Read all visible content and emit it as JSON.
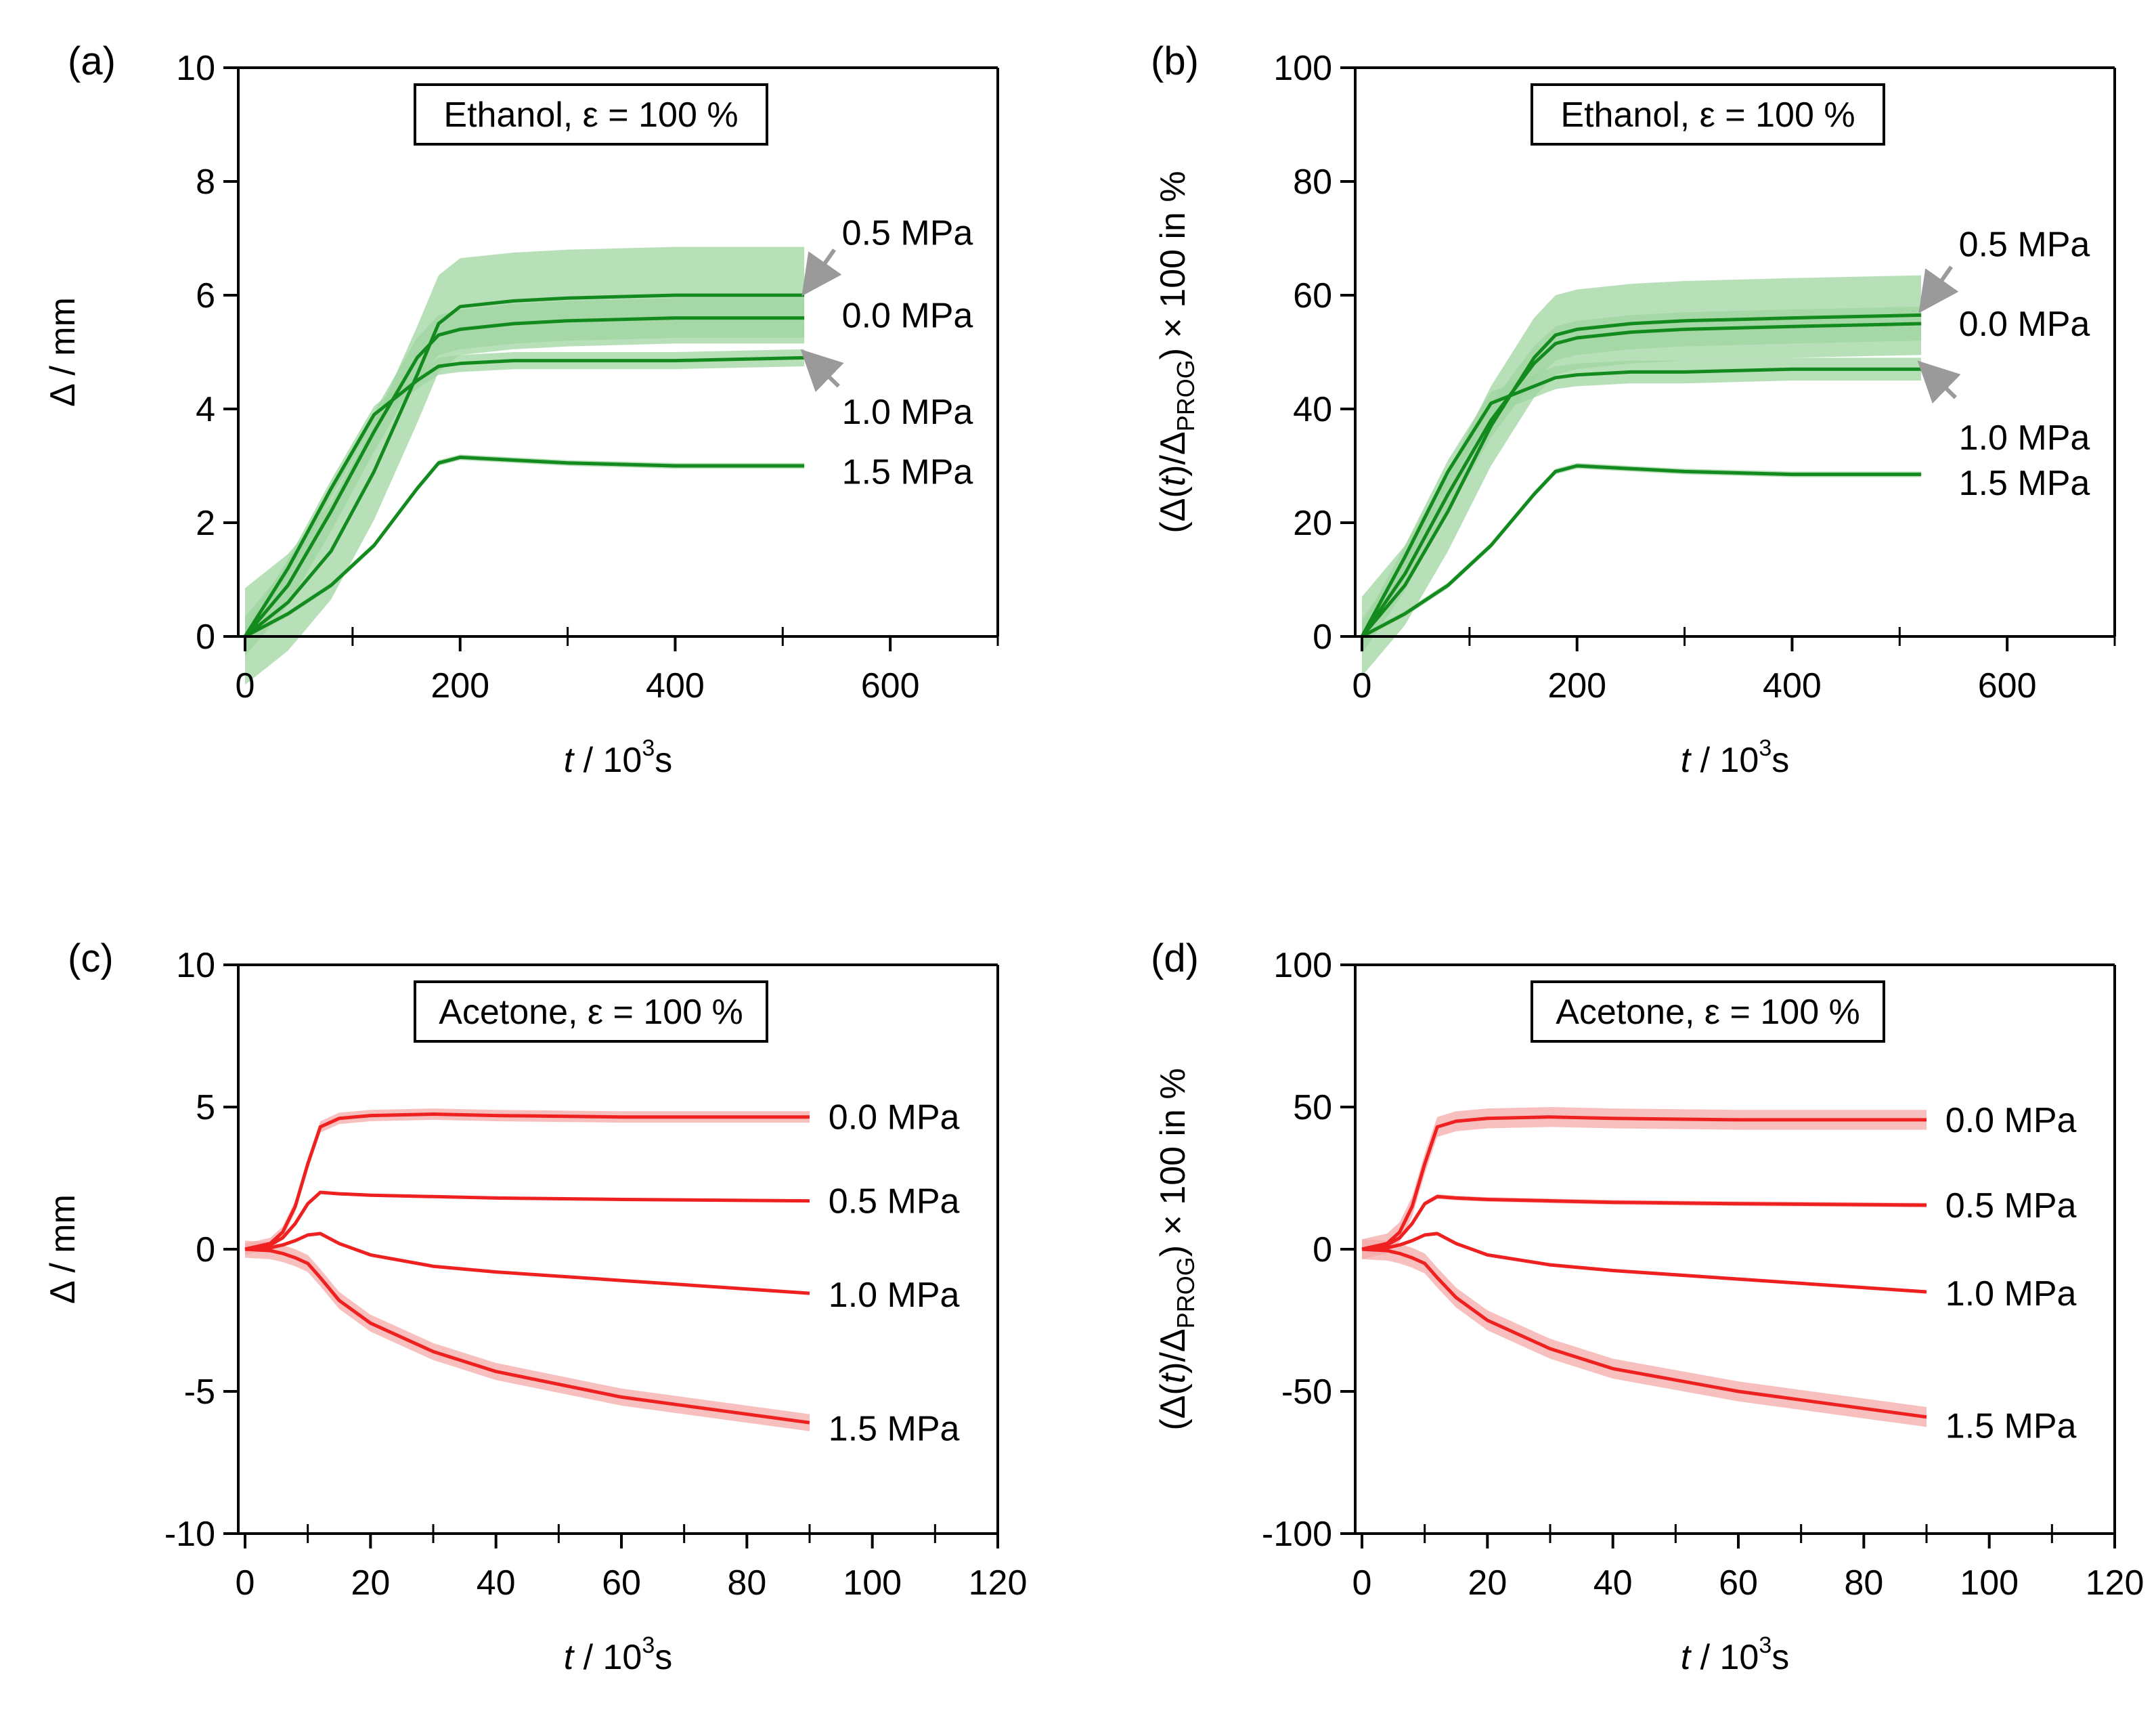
{
  "figure": {
    "series_color_ethanol": "#138a1e",
    "band_color_ethanol": "#9fd6a0",
    "series_color_acetone": "#ee2020",
    "band_color_acetone": "#f6aaaa",
    "arrow_color": "#9a9a9a"
  },
  "chart_data": [
    {
      "panel_label": "(a)",
      "type": "line",
      "annotation": "Ethanol, ε = 100 %",
      "xlabel_italic": "t",
      "xlabel_rest": " / 10",
      "xlabel_sup": "3",
      "xlabel_unit": "s",
      "ylabel": "Δ / mm",
      "xlim": [
        0,
        700
      ],
      "ylim": [
        0,
        10
      ],
      "xticks": [
        0,
        200,
        400,
        600
      ],
      "xtick_labels": [
        "0",
        "200",
        "400",
        "600"
      ],
      "xminor": [
        100,
        300,
        500,
        700
      ],
      "yticks": [
        0,
        2,
        4,
        6,
        8,
        10
      ],
      "ytick_labels": [
        "0",
        "2",
        "4",
        "6",
        "8",
        "10"
      ],
      "color_key": "ethanol",
      "series": [
        {
          "name": "0.5 MPa",
          "x": [
            0,
            40,
            80,
            120,
            160,
            180,
            200,
            250,
            300,
            400,
            520
          ],
          "y": [
            0,
            0.6,
            1.5,
            2.9,
            4.6,
            5.5,
            5.8,
            5.9,
            5.95,
            6.0,
            6.0
          ],
          "band": 0.85
        },
        {
          "name": "0.0 MPa",
          "x": [
            0,
            40,
            80,
            120,
            160,
            180,
            200,
            250,
            300,
            400,
            520
          ],
          "y": [
            0,
            0.9,
            2.2,
            3.6,
            4.9,
            5.3,
            5.4,
            5.5,
            5.55,
            5.6,
            5.6
          ],
          "band": 0.35
        },
        {
          "name": "1.0 MPa",
          "x": [
            0,
            40,
            80,
            120,
            160,
            180,
            200,
            250,
            300,
            400,
            520
          ],
          "y": [
            0,
            1.2,
            2.6,
            3.9,
            4.5,
            4.75,
            4.8,
            4.85,
            4.85,
            4.85,
            4.9
          ],
          "band": 0.15
        },
        {
          "name": "1.5 MPa",
          "x": [
            0,
            40,
            80,
            120,
            160,
            180,
            200,
            250,
            300,
            400,
            520
          ],
          "y": [
            0,
            0.4,
            0.9,
            1.6,
            2.6,
            3.05,
            3.15,
            3.1,
            3.05,
            3.0,
            3.0
          ],
          "band": 0.05
        }
      ],
      "labels": [
        {
          "text": "0.5 MPa",
          "x": 555,
          "y": 7.1
        },
        {
          "text": "0.0 MPa",
          "x": 555,
          "y": 5.65
        },
        {
          "text": "1.0 MPa",
          "x": 555,
          "y": 3.95
        },
        {
          "text": "1.5 MPa",
          "x": 555,
          "y": 2.9
        }
      ],
      "arrows": [
        {
          "from": [
            548,
            6.8
          ],
          "to": [
            522,
            6.1
          ]
        },
        {
          "from": [
            552,
            4.4
          ],
          "to": [
            522,
            4.95
          ]
        }
      ]
    },
    {
      "panel_label": "(b)",
      "type": "line",
      "annotation": "Ethanol, ε = 100 %",
      "xlabel_italic": "t",
      "xlabel_rest": " / 10",
      "xlabel_sup": "3",
      "xlabel_unit": "s",
      "ylabel_parts": [
        "(Δ(",
        "t",
        ")/Δ",
        "PROG",
        ") × 100 in %"
      ],
      "xlim": [
        0,
        700
      ],
      "ylim": [
        0,
        100
      ],
      "xticks": [
        0,
        200,
        400,
        600
      ],
      "xtick_labels": [
        "0",
        "200",
        "400",
        "600"
      ],
      "xminor": [
        100,
        300,
        500,
        700
      ],
      "yticks": [
        0,
        20,
        40,
        60,
        80,
        100
      ],
      "ytick_labels": [
        "0",
        "20",
        "40",
        "60",
        "80",
        "100"
      ],
      "color_key": "ethanol",
      "series": [
        {
          "name": "0.5 MPa",
          "x": [
            0,
            40,
            80,
            120,
            160,
            180,
            200,
            250,
            300,
            400,
            520
          ],
          "y": [
            0,
            9,
            22,
            37,
            49,
            53,
            54,
            55,
            55.5,
            56,
            56.5
          ],
          "band": 7
        },
        {
          "name": "0.0 MPa",
          "x": [
            0,
            40,
            80,
            120,
            160,
            180,
            200,
            250,
            300,
            400,
            520
          ],
          "y": [
            0,
            11,
            25,
            38,
            48,
            51.5,
            52.5,
            53.5,
            54,
            54.5,
            55
          ],
          "band": 3
        },
        {
          "name": "1.0 MPa",
          "x": [
            0,
            40,
            80,
            120,
            160,
            180,
            200,
            250,
            300,
            400,
            520
          ],
          "y": [
            0,
            14,
            29,
            41,
            44,
            45.5,
            46,
            46.5,
            46.5,
            47,
            47
          ],
          "band": 2
        },
        {
          "name": "1.5 MPa",
          "x": [
            0,
            40,
            80,
            120,
            160,
            180,
            200,
            250,
            300,
            400,
            520
          ],
          "y": [
            0,
            4,
            9,
            16,
            25,
            29,
            30,
            29.5,
            29,
            28.5,
            28.5
          ],
          "band": 0.5
        }
      ],
      "labels": [
        {
          "text": "0.5 MPa",
          "x": 555,
          "y": 69
        },
        {
          "text": "0.0 MPa",
          "x": 555,
          "y": 55
        },
        {
          "text": "1.0 MPa",
          "x": 555,
          "y": 35
        },
        {
          "text": "1.5 MPa",
          "x": 555,
          "y": 27
        }
      ],
      "arrows": [
        {
          "from": [
            548,
            65
          ],
          "to": [
            522,
            58
          ]
        },
        {
          "from": [
            552,
            42
          ],
          "to": [
            522,
            47.5
          ]
        }
      ]
    },
    {
      "panel_label": "(c)",
      "type": "line",
      "annotation": "Acetone, ε = 100 %",
      "xlabel_italic": "t",
      "xlabel_rest": " / 10",
      "xlabel_sup": "3",
      "xlabel_unit": "s",
      "ylabel": "Δ / mm",
      "xlim": [
        0,
        120
      ],
      "ylim": [
        -10,
        10
      ],
      "xticks": [
        0,
        20,
        40,
        60,
        80,
        100,
        120
      ],
      "xtick_labels": [
        "0",
        "20",
        "40",
        "60",
        "80",
        "100",
        "120"
      ],
      "xminor": [
        10,
        30,
        50,
        70,
        90,
        110
      ],
      "yticks": [
        -10,
        -5,
        0,
        5,
        10
      ],
      "ytick_labels": [
        "-10",
        "-5",
        "0",
        "5",
        "10"
      ],
      "color_key": "acetone",
      "series": [
        {
          "name": "0.0 MPa",
          "x": [
            0,
            4,
            6,
            8,
            10,
            12,
            15,
            20,
            30,
            40,
            60,
            90
          ],
          "y": [
            0,
            0.2,
            0.6,
            1.5,
            3.0,
            4.3,
            4.6,
            4.7,
            4.75,
            4.7,
            4.65,
            4.65
          ],
          "band": 0.2
        },
        {
          "name": "0.5 MPa",
          "x": [
            0,
            4,
            6,
            8,
            10,
            12,
            15,
            20,
            30,
            40,
            60,
            90
          ],
          "y": [
            0,
            0.15,
            0.4,
            0.9,
            1.6,
            2.0,
            1.95,
            1.9,
            1.85,
            1.8,
            1.75,
            1.7
          ],
          "band": 0.05
        },
        {
          "name": "1.0 MPa",
          "x": [
            0,
            4,
            6,
            8,
            10,
            12,
            15,
            20,
            30,
            40,
            60,
            90
          ],
          "y": [
            0,
            0.05,
            0.15,
            0.3,
            0.5,
            0.55,
            0.2,
            -0.2,
            -0.6,
            -0.8,
            -1.1,
            -1.55
          ],
          "band": 0.05
        },
        {
          "name": "1.5 MPa",
          "x": [
            0,
            4,
            6,
            8,
            10,
            12,
            15,
            20,
            30,
            40,
            60,
            90
          ],
          "y": [
            0,
            -0.05,
            -0.15,
            -0.3,
            -0.5,
            -1.0,
            -1.8,
            -2.6,
            -3.6,
            -4.3,
            -5.2,
            -6.1
          ],
          "band": 0.3
        }
      ],
      "labels": [
        {
          "text": "0.0 MPa",
          "x": 93,
          "y": 4.65
        },
        {
          "text": "0.5 MPa",
          "x": 93,
          "y": 1.7
        },
        {
          "text": "1.0 MPa",
          "x": 93,
          "y": -1.6
        },
        {
          "text": "1.5 MPa",
          "x": 93,
          "y": -6.3
        }
      ],
      "arrows": []
    },
    {
      "panel_label": "(d)",
      "type": "line",
      "annotation": "Acetone, ε = 100 %",
      "xlabel_italic": "t",
      "xlabel_rest": " / 10",
      "xlabel_sup": "3",
      "xlabel_unit": "s",
      "ylabel_parts": [
        "(Δ(",
        "t",
        ")/Δ",
        "PROG",
        ") × 100 in %"
      ],
      "xlim": [
        0,
        120
      ],
      "ylim": [
        -100,
        100
      ],
      "xticks": [
        0,
        20,
        40,
        60,
        80,
        100,
        120
      ],
      "xtick_labels": [
        "0",
        "20",
        "40",
        "60",
        "80",
        "100",
        "120"
      ],
      "xminor": [
        10,
        30,
        50,
        70,
        90,
        110
      ],
      "yticks": [
        -100,
        -50,
        0,
        50,
        100
      ],
      "ytick_labels": [
        "-100",
        "-50",
        "0",
        "50",
        "100"
      ],
      "color_key": "acetone",
      "series": [
        {
          "name": "0.0 MPa",
          "x": [
            0,
            4,
            6,
            8,
            10,
            12,
            15,
            20,
            30,
            40,
            60,
            90
          ],
          "y": [
            0,
            2,
            6,
            15,
            30,
            43,
            45,
            46,
            46.5,
            46,
            45.5,
            45.5
          ],
          "band": 3.5
        },
        {
          "name": "0.5 MPa",
          "x": [
            0,
            4,
            6,
            8,
            10,
            12,
            15,
            20,
            30,
            40,
            60,
            90
          ],
          "y": [
            0,
            1.5,
            4,
            9,
            16,
            18.5,
            18,
            17.5,
            17,
            16.5,
            16,
            15.5
          ],
          "band": 0.8
        },
        {
          "name": "1.0 MPa",
          "x": [
            0,
            4,
            6,
            8,
            10,
            12,
            15,
            20,
            30,
            40,
            60,
            90
          ],
          "y": [
            0,
            0.5,
            1.5,
            3,
            5,
            5.5,
            2,
            -2,
            -5.5,
            -7.5,
            -10.5,
            -15
          ],
          "band": 0.6
        },
        {
          "name": "1.5 MPa",
          "x": [
            0,
            4,
            6,
            8,
            10,
            12,
            15,
            20,
            30,
            40,
            60,
            90
          ],
          "y": [
            0,
            -0.5,
            -1.5,
            -3,
            -5,
            -10,
            -17,
            -25,
            -35,
            -42,
            -50,
            -59
          ],
          "band": 3.5
        }
      ],
      "labels": [
        {
          "text": "0.0 MPa",
          "x": 93,
          "y": 45.5
        },
        {
          "text": "0.5 MPa",
          "x": 93,
          "y": 15.5
        },
        {
          "text": "1.0 MPa",
          "x": 93,
          "y": -15.5
        },
        {
          "text": "1.5 MPa",
          "x": 93,
          "y": -62
        }
      ],
      "arrows": []
    }
  ]
}
